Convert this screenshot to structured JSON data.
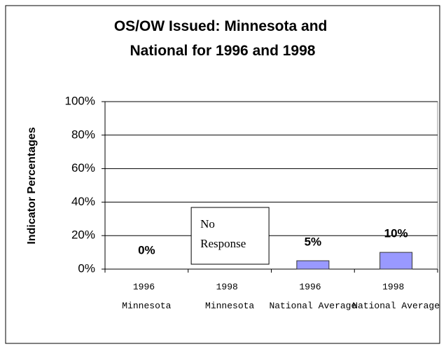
{
  "chart_data": {
    "type": "bar",
    "title": "OS/OW Issued: Minnesota and National for 1996 and 1998",
    "y_label": "Indicator Percentages",
    "categories": [
      "1996 Minnesota",
      "1998 Minnesota",
      "1996 National Average",
      "1998 National Average"
    ],
    "values": [
      0,
      null,
      5,
      10
    ],
    "value_labels": [
      "0%",
      null,
      "5%",
      "10%"
    ],
    "annotation": "No Response",
    "color": "#9999ff",
    "ylim": [
      0,
      100
    ],
    "yticks": [
      {
        "value": 0,
        "label": "0%"
      },
      {
        "value": 20,
        "label": "20%"
      },
      {
        "value": 40,
        "label": "40%"
      },
      {
        "value": 60,
        "label": "60%"
      },
      {
        "value": 80,
        "label": "80%"
      },
      {
        "value": 100,
        "label": "100%"
      }
    ],
    "grid": true
  }
}
